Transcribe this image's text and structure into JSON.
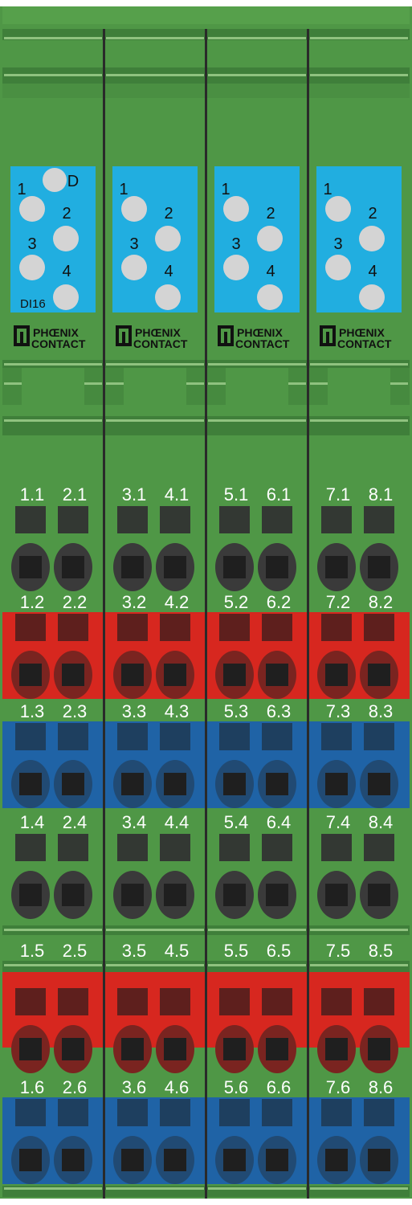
{
  "device": {
    "brand_line1": "PHŒNIX",
    "brand_line2": "CONTACT",
    "module_label": "DI16",
    "diag_label": "D"
  },
  "colors": {
    "housing": "#4f9746",
    "housing_dark": "#3f7f3a",
    "housing_light": "#8fc27f",
    "divider": "#2a2a2a",
    "led_panel": "#21aee0",
    "led": "#d4d4d4",
    "plug_red": "#d7271f",
    "plug_blue": "#1f63a6",
    "push_button": "#3a3a3a"
  },
  "modules": [
    {
      "name": "module-1",
      "leds": [
        "1",
        "2",
        "3",
        "4"
      ],
      "rows": [
        [
          "1.1",
          "2.1"
        ],
        [
          "1.2",
          "2.2"
        ],
        [
          "1.3",
          "2.3"
        ],
        [
          "1.4",
          "2.4"
        ],
        [
          "1.5",
          "2.5"
        ],
        [
          "1.6",
          "2.6"
        ]
      ]
    },
    {
      "name": "module-2",
      "leds": [
        "1",
        "2",
        "3",
        "4"
      ],
      "rows": [
        [
          "3.1",
          "4.1"
        ],
        [
          "3.2",
          "4.2"
        ],
        [
          "3.3",
          "4.3"
        ],
        [
          "3.4",
          "4.4"
        ],
        [
          "3.5",
          "4.5"
        ],
        [
          "3.6",
          "4.6"
        ]
      ]
    },
    {
      "name": "module-3",
      "leds": [
        "1",
        "2",
        "3",
        "4"
      ],
      "rows": [
        [
          "5.1",
          "6.1"
        ],
        [
          "5.2",
          "6.2"
        ],
        [
          "5.3",
          "6.3"
        ],
        [
          "5.4",
          "6.4"
        ],
        [
          "5.5",
          "6.5"
        ],
        [
          "5.6",
          "6.6"
        ]
      ]
    },
    {
      "name": "module-4",
      "leds": [
        "1",
        "2",
        "3",
        "4"
      ],
      "rows": [
        [
          "7.1",
          "8.1"
        ],
        [
          "7.2",
          "8.2"
        ],
        [
          "7.3",
          "8.3"
        ],
        [
          "7.4",
          "8.4"
        ],
        [
          "7.5",
          "8.5"
        ],
        [
          "7.6",
          "8.6"
        ]
      ]
    }
  ]
}
